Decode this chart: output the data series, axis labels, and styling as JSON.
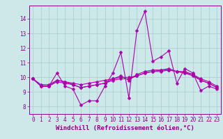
{
  "x": [
    0,
    1,
    2,
    3,
    4,
    5,
    6,
    7,
    8,
    9,
    10,
    11,
    12,
    13,
    14,
    15,
    16,
    17,
    18,
    19,
    20,
    21,
    22,
    23
  ],
  "series": [
    [
      9.9,
      9.4,
      9.4,
      10.3,
      9.4,
      9.2,
      8.1,
      8.4,
      8.4,
      9.4,
      10.3,
      11.7,
      8.6,
      13.2,
      14.5,
      11.1,
      11.4,
      11.8,
      9.6,
      10.6,
      10.3,
      9.1,
      9.4,
      9.2
    ],
    [
      9.9,
      9.4,
      9.4,
      9.7,
      9.6,
      9.5,
      9.3,
      9.4,
      9.5,
      9.6,
      9.8,
      9.9,
      9.9,
      10.1,
      10.3,
      10.4,
      10.5,
      10.5,
      10.4,
      10.3,
      10.1,
      9.8,
      9.6,
      9.3
    ],
    [
      9.9,
      9.5,
      9.5,
      9.8,
      9.7,
      9.6,
      9.5,
      9.6,
      9.7,
      9.8,
      9.9,
      10.0,
      10.0,
      10.1,
      10.3,
      10.4,
      10.4,
      10.5,
      10.4,
      10.3,
      10.2,
      9.9,
      9.7,
      9.4
    ],
    [
      9.9,
      9.4,
      9.4,
      9.8,
      9.7,
      9.5,
      9.3,
      9.4,
      9.5,
      9.6,
      9.9,
      10.1,
      9.8,
      10.2,
      10.4,
      10.5,
      10.5,
      10.6,
      10.4,
      10.4,
      10.2,
      9.8,
      9.6,
      9.3
    ]
  ],
  "line_color": "#aa00aa",
  "marker": "D",
  "markersize": 2.5,
  "linewidth": 0.8,
  "bg_color": "#cce8e8",
  "grid_color": "#aacccc",
  "xlabel": "Windchill (Refroidissement éolien,°C)",
  "xlim": [
    -0.5,
    23.5
  ],
  "ylim": [
    7.5,
    14.9
  ],
  "yticks": [
    8,
    9,
    10,
    11,
    12,
    13,
    14
  ],
  "xticks": [
    0,
    1,
    2,
    3,
    4,
    5,
    6,
    7,
    8,
    9,
    10,
    11,
    12,
    13,
    14,
    15,
    16,
    17,
    18,
    19,
    20,
    21,
    22,
    23
  ],
  "tick_fontsize": 5.5,
  "xlabel_fontsize": 6.5,
  "tick_color": "#880088"
}
